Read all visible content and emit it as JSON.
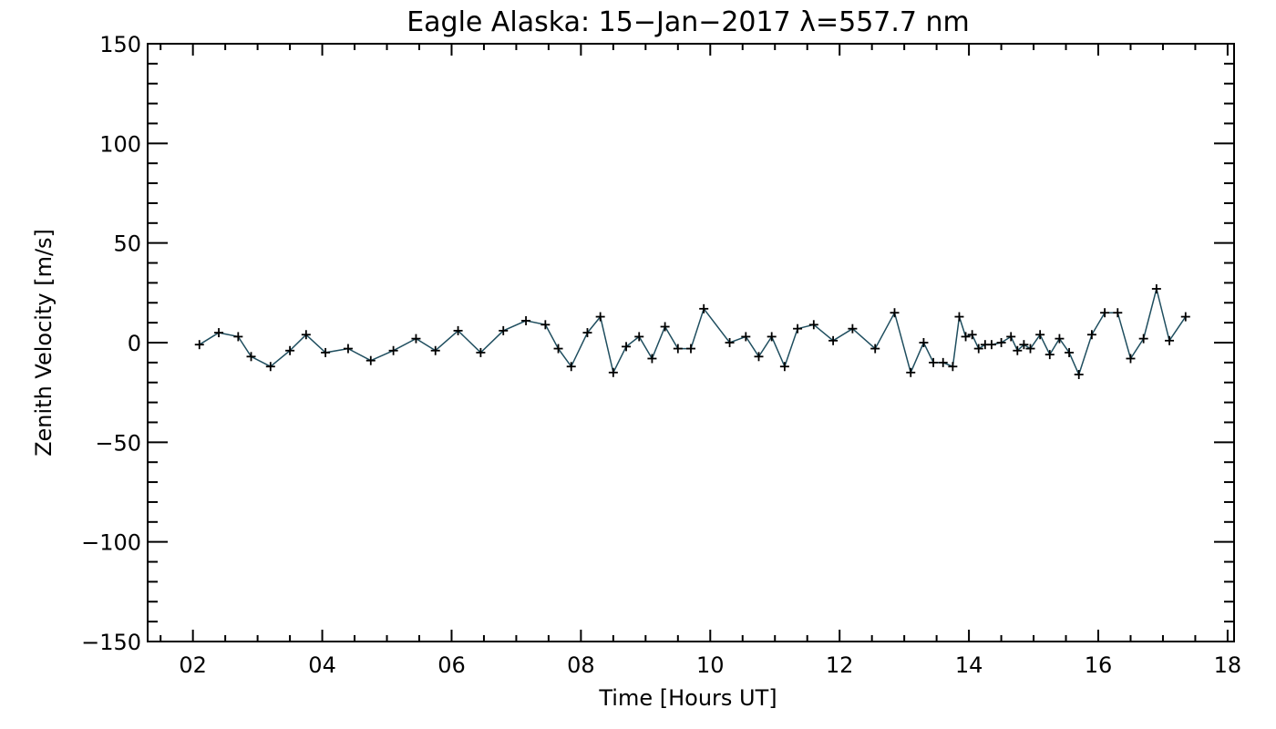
{
  "chart_data": {
    "type": "line",
    "title": "Eagle Alaska: 15−Jan−2017 λ=557.7 nm",
    "xlabel": "Time [Hours UT]",
    "ylabel": "Zenith Velocity [m/s]",
    "xlim": [
      1.3,
      18.1
    ],
    "ylim": [
      -150,
      150
    ],
    "x_ticks": [
      2,
      4,
      6,
      8,
      10,
      12,
      14,
      16,
      18
    ],
    "x_tick_labels": [
      "02",
      "04",
      "06",
      "08",
      "10",
      "12",
      "14",
      "16",
      "18"
    ],
    "y_ticks": [
      -150,
      -100,
      -50,
      0,
      50,
      100,
      150
    ],
    "y_tick_labels": [
      "−150",
      "−100",
      "−50",
      "0",
      "50",
      "100",
      "150"
    ],
    "grid": false,
    "line_color": "#1f4e5f",
    "marker": "plus",
    "series": [
      {
        "x": [
          2.1,
          2.4,
          2.7,
          2.9,
          3.2,
          3.5,
          3.75,
          4.05,
          4.4,
          4.75,
          5.1,
          5.45,
          5.75,
          6.1,
          6.45,
          6.8,
          7.15,
          7.45,
          7.65,
          7.85,
          8.1,
          8.3,
          8.5,
          8.7,
          8.9,
          9.1,
          9.3,
          9.5,
          9.7,
          9.9,
          10.3,
          10.55,
          10.75,
          10.95,
          11.15,
          11.35,
          11.6,
          11.9,
          12.2,
          12.55,
          12.85,
          13.1,
          13.3,
          13.45,
          13.6,
          13.75,
          13.85,
          13.95,
          14.05,
          14.15,
          14.25,
          14.35,
          14.5,
          14.65,
          14.75,
          14.85,
          14.95,
          15.1,
          15.25,
          15.4,
          15.55,
          15.7,
          15.9,
          16.1,
          16.3,
          16.5,
          16.7,
          16.9,
          17.1,
          17.35
        ],
        "y": [
          -1,
          5,
          3,
          -7,
          -12,
          -4,
          4,
          -5,
          -3,
          -9,
          -4,
          2,
          -4,
          6,
          -5,
          6,
          11,
          9,
          -3,
          -12,
          5,
          13,
          -15,
          -2,
          3,
          -8,
          8,
          -3,
          -3,
          17,
          0,
          3,
          -7,
          3,
          -12,
          7,
          9,
          1,
          7,
          -3,
          15,
          -15,
          0,
          -10,
          -10,
          -12,
          13,
          3,
          4,
          -3,
          -1,
          -1,
          0,
          3,
          -4,
          -1,
          -3,
          4,
          -6,
          2,
          -5,
          -16,
          4,
          15,
          15,
          -8,
          2,
          27,
          1,
          13
        ]
      }
    ]
  }
}
